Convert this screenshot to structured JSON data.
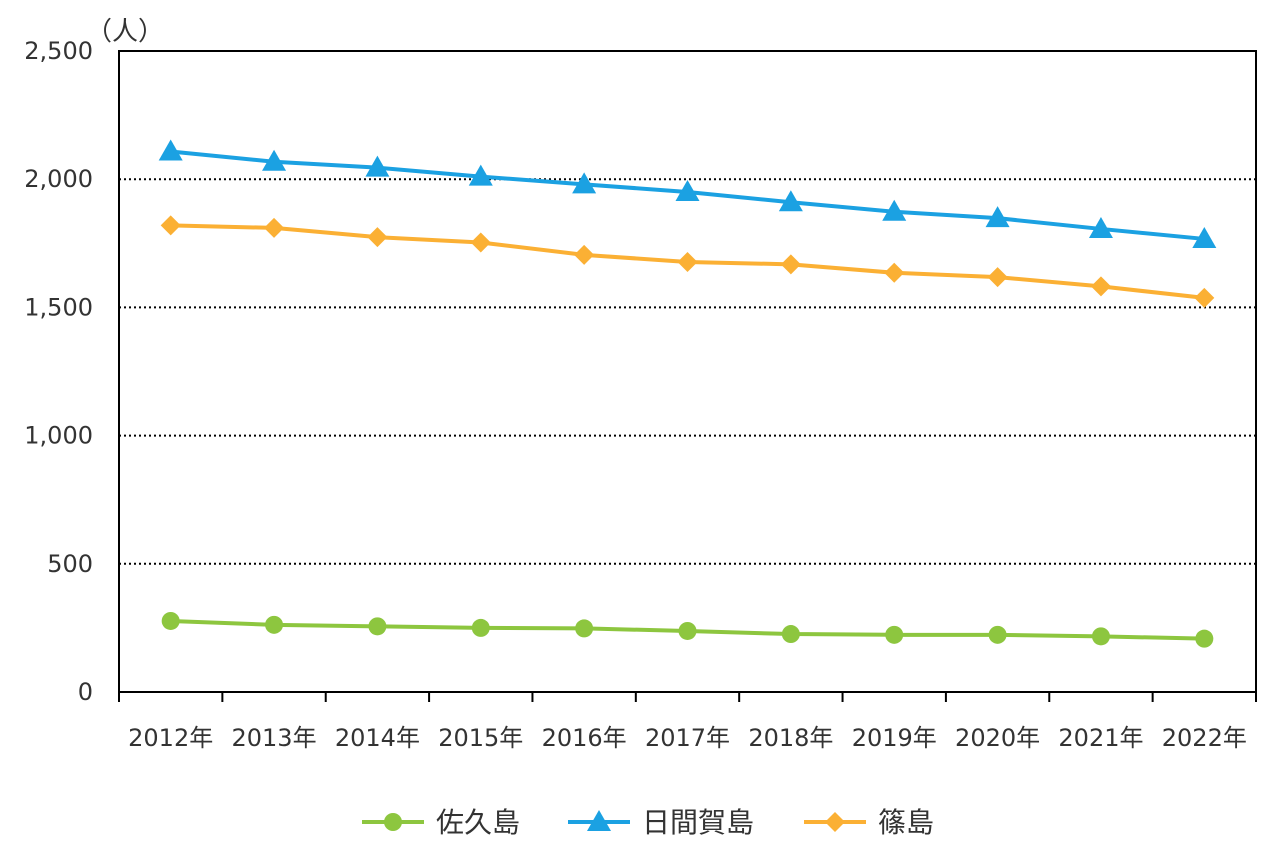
{
  "chart_data": {
    "type": "line",
    "title": "",
    "xlabel": "",
    "ylabel": "",
    "unit_label": "（人）",
    "categories": [
      "2012年",
      "2013年",
      "2014年",
      "2015年",
      "2016年",
      "2017年",
      "2018年",
      "2019年",
      "2020年",
      "2021年",
      "2022年"
    ],
    "ylim": [
      0,
      2500
    ],
    "yticks": [
      0,
      500,
      1000,
      1500,
      2000,
      2500
    ],
    "ytick_labels": [
      "0",
      "500",
      "1,000",
      "1,500",
      "2,000",
      "2,500"
    ],
    "grid": "horizontal dotted",
    "legend_position": "bottom",
    "series": [
      {
        "name": "佐久島",
        "color": "#8dc63f",
        "marker": "circle",
        "values": [
          277,
          262,
          256,
          250,
          248,
          238,
          226,
          223,
          223,
          217,
          208
        ]
      },
      {
        "name": "日間賀島",
        "color": "#1ba1e2",
        "marker": "triangle",
        "values": [
          2108,
          2068,
          2045,
          2010,
          1980,
          1950,
          1910,
          1873,
          1848,
          1806,
          1767
        ]
      },
      {
        "name": "篠島",
        "color": "#fbb034",
        "marker": "diamond",
        "values": [
          1820,
          1810,
          1774,
          1753,
          1705,
          1677,
          1668,
          1635,
          1618,
          1582,
          1537
        ]
      }
    ]
  }
}
